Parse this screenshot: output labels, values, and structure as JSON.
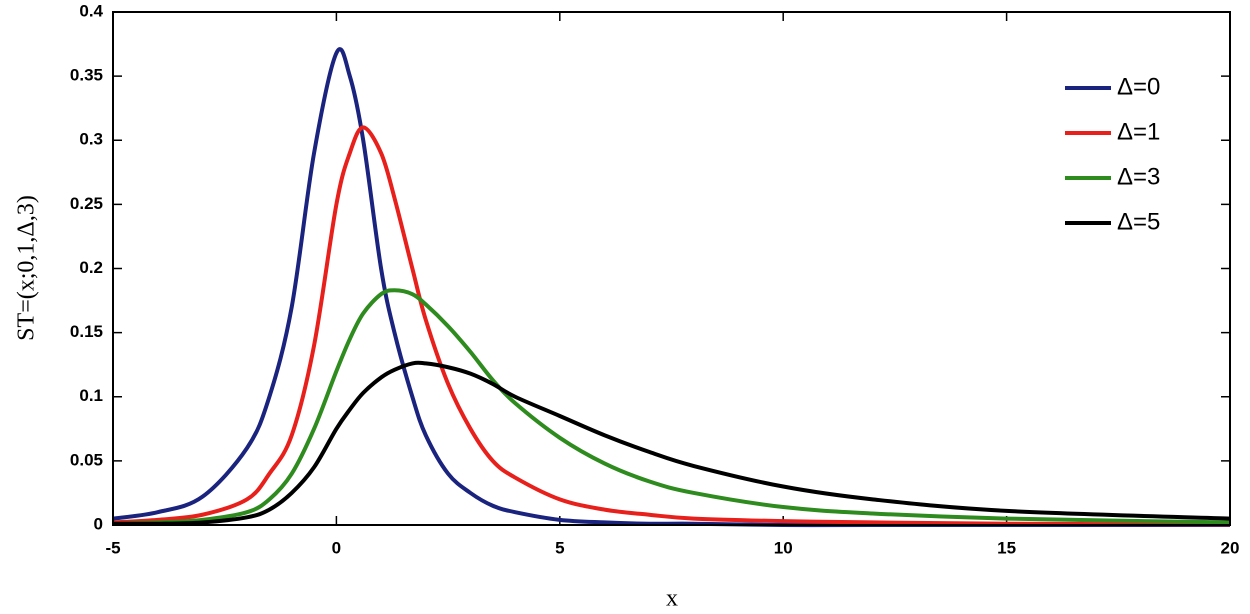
{
  "chart_data": {
    "type": "line",
    "xlabel": "x",
    "ylabel": "ST=(x;0,1,Δ,3)",
    "x": [
      -5,
      -4,
      -3,
      -2,
      -1.5,
      -1,
      -0.5,
      0,
      0.3,
      0.6,
      1,
      1.3,
      1.7,
      2,
      2.5,
      3,
      3.5,
      4,
      5,
      6,
      7,
      8,
      10,
      12,
      15,
      20
    ],
    "series": [
      {
        "name": "Δ=0",
        "color": "#1a237e",
        "values": [
          0.005,
          0.01,
          0.022,
          0.06,
          0.1,
          0.17,
          0.29,
          0.368,
          0.35,
          0.3,
          0.2,
          0.15,
          0.1,
          0.07,
          0.04,
          0.025,
          0.015,
          0.01,
          0.004,
          0.002,
          0.001,
          0.001,
          0,
          0,
          0,
          0
        ]
      },
      {
        "name": "Δ=1",
        "color": "#e8201c",
        "values": [
          0.002,
          0.004,
          0.008,
          0.02,
          0.04,
          0.07,
          0.14,
          0.25,
          0.29,
          0.31,
          0.29,
          0.255,
          0.2,
          0.16,
          0.11,
          0.075,
          0.05,
          0.037,
          0.02,
          0.012,
          0.008,
          0.005,
          0.003,
          0.002,
          0.001,
          0.0005
        ]
      },
      {
        "name": "Δ=3",
        "color": "#2e8b1e",
        "values": [
          0.001,
          0.002,
          0.004,
          0.01,
          0.02,
          0.04,
          0.075,
          0.12,
          0.145,
          0.165,
          0.18,
          0.183,
          0.18,
          0.172,
          0.155,
          0.135,
          0.113,
          0.095,
          0.068,
          0.048,
          0.034,
          0.025,
          0.014,
          0.009,
          0.005,
          0.002
        ]
      },
      {
        "name": "Δ=5",
        "color": "#000000",
        "values": [
          0.001,
          0.001,
          0.002,
          0.006,
          0.012,
          0.025,
          0.045,
          0.075,
          0.09,
          0.103,
          0.115,
          0.121,
          0.126,
          0.126,
          0.123,
          0.118,
          0.11,
          0.1,
          0.085,
          0.07,
          0.057,
          0.046,
          0.03,
          0.02,
          0.011,
          0.005
        ]
      }
    ],
    "xlim": [
      -5,
      20
    ],
    "xticks": [
      -5,
      0,
      5,
      10,
      15,
      20
    ],
    "ylim": [
      0,
      0.4
    ],
    "yticks": [
      0,
      0.05,
      0.1,
      0.15,
      0.2,
      0.25,
      0.3,
      0.35,
      0.4
    ],
    "grid": false,
    "legend": "upper right"
  }
}
